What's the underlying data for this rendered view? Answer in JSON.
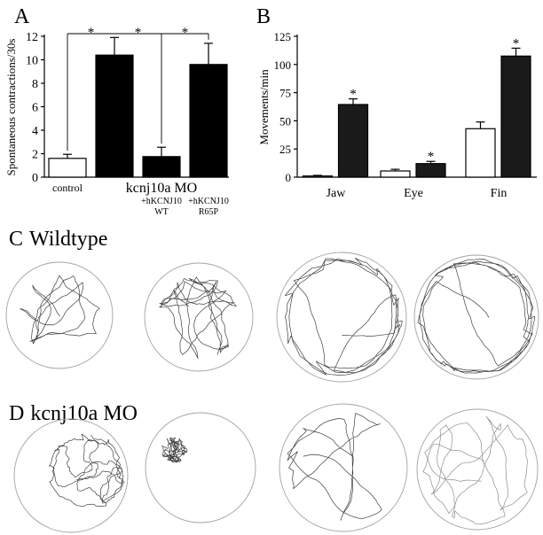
{
  "figure": {
    "panels": {
      "A": {
        "letter": "A"
      },
      "B": {
        "letter": "B"
      },
      "C": {
        "letter": "C",
        "title": "Wildtype"
      },
      "D": {
        "letter": "D",
        "title": "kcnj10a MO"
      }
    },
    "colors": {
      "arena": "#a3a3a3",
      "track": "#3f3f3f",
      "track_light": "#8e8e8e"
    }
  },
  "chart_data": [
    {
      "panel": "A",
      "type": "bar",
      "ylabel": "Spontaneous contractions/30s",
      "ylim": [
        0,
        12
      ],
      "yticks": [
        0,
        2,
        4,
        6,
        8,
        10,
        12
      ],
      "bars": [
        {
          "value": 1.6,
          "error": 0.35,
          "fill": "#ffffff"
        },
        {
          "value": 10.4,
          "error": 1.5,
          "fill": "#000000"
        },
        {
          "value": 1.75,
          "error": 0.8,
          "fill": "#000000"
        },
        {
          "value": 9.6,
          "error": 1.8,
          "fill": "#000000"
        }
      ],
      "bar_labels": [
        [
          "control"
        ],
        [],
        [
          "+hKCNJ10",
          "WT"
        ],
        [
          "+hKCNJ10",
          "R65P"
        ]
      ],
      "group_label": {
        "text": "kcnj10a MO",
        "bars": [
          1,
          3
        ]
      },
      "significance": [
        {
          "from": 0,
          "to": 1,
          "label": "*"
        },
        {
          "from": 1,
          "to": 2,
          "label": "*"
        },
        {
          "from": 2,
          "to": 3,
          "label": "*"
        }
      ]
    },
    {
      "panel": "B",
      "type": "bar",
      "ylabel": "Movements/min",
      "ylim": [
        0,
        125
      ],
      "yticks": [
        0,
        25,
        50,
        75,
        100,
        125
      ],
      "categories": [
        "Jaw",
        "Eye",
        "Fin"
      ],
      "series": [
        {
          "fill": "#ffffff",
          "values": [
            1,
            5.5,
            43
          ],
          "errors": [
            0.6,
            1.5,
            6
          ]
        },
        {
          "fill": "#1a1a1a",
          "values": [
            64.5,
            12,
            107.5
          ],
          "errors": [
            5,
            2,
            7
          ],
          "labels": [
            "*",
            "*",
            "*"
          ]
        }
      ]
    }
  ]
}
